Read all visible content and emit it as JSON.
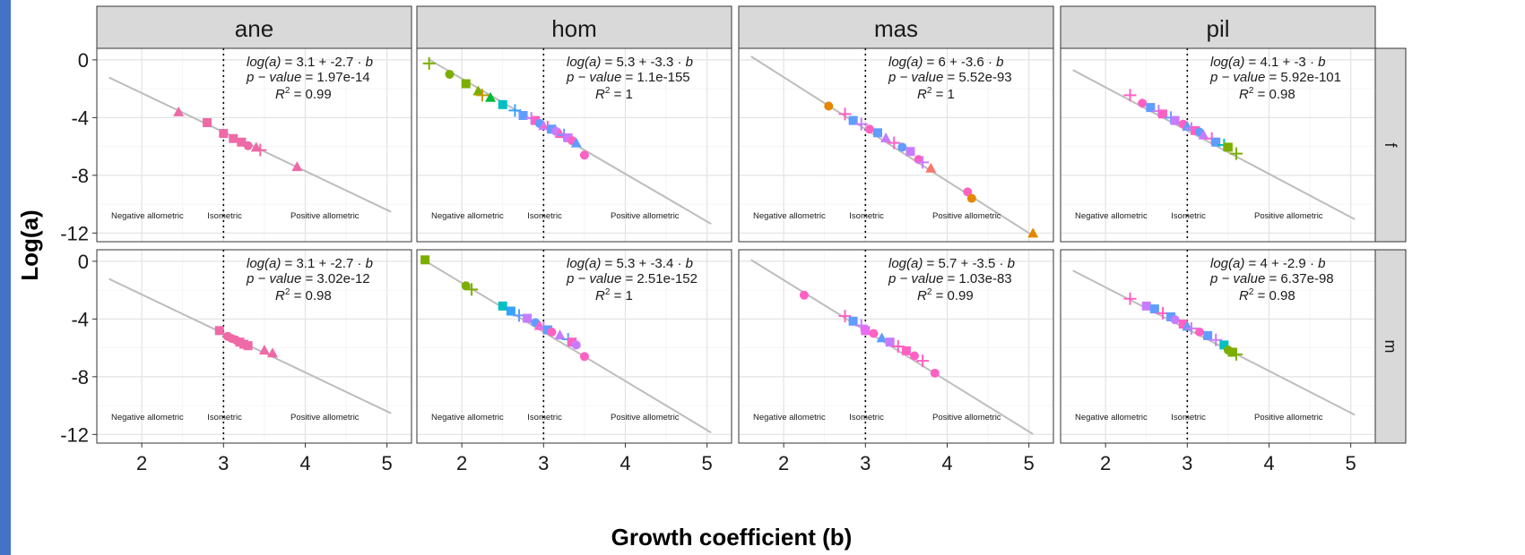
{
  "chart_data": {
    "type": "scatter",
    "xlabel": "Growth coefficient (b)",
    "ylabel": "Log(a)",
    "xlim": [
      1.45,
      5.3
    ],
    "ylim": [
      -12.6,
      0.8
    ],
    "xticks": [
      2,
      3,
      4,
      5
    ],
    "yticks": [
      0,
      -4,
      -8,
      -12
    ],
    "ytick_labels": [
      "0",
      "-4",
      "-8",
      "-12"
    ],
    "isometric_b": 3,
    "zone_labels": {
      "negative": "Negative allometric",
      "iso": "Isometric",
      "positive": "Positive allometric"
    },
    "grid": true,
    "facet_columns": [
      "ane",
      "hom",
      "mas",
      "pil"
    ],
    "facet_rows": [
      "f",
      "m"
    ],
    "panels": [
      {
        "column": "ane",
        "row": "f",
        "intercept": 3.1,
        "slope": -2.7,
        "eq_a": "3.1",
        "eq_b": "-2.7",
        "p_value": "1.97e-14",
        "r2": "0.99",
        "points": [
          [
            2.45,
            -3.6,
            "#ee6aa6",
            "tri"
          ],
          [
            2.8,
            -4.35,
            "#ee6aa6",
            "sq"
          ],
          [
            3.0,
            -5.1,
            "#ee6aa6",
            "sq"
          ],
          [
            3.12,
            -5.45,
            "#ee6aa6",
            "sq"
          ],
          [
            3.22,
            -5.7,
            "#ee6aa6",
            "sq"
          ],
          [
            3.3,
            -5.95,
            "#ee6aa6",
            "circ"
          ],
          [
            3.4,
            -6.05,
            "#ee6aa6",
            "tri"
          ],
          [
            3.45,
            -6.25,
            "#ee6aa6",
            "plus"
          ],
          [
            3.9,
            -7.4,
            "#ee6aa6",
            "tri"
          ]
        ]
      },
      {
        "column": "hom",
        "row": "f",
        "intercept": 5.3,
        "slope": -3.3,
        "eq_a": "5.3",
        "eq_b": "-3.3",
        "p_value": "1.1e-155",
        "r2": "1",
        "points": [
          [
            1.6,
            -0.25,
            "#7cae00",
            "plus"
          ],
          [
            1.85,
            -1.0,
            "#7cae00",
            "circ"
          ],
          [
            2.05,
            -1.65,
            "#7cae00",
            "sq"
          ],
          [
            2.2,
            -2.15,
            "#7cae00",
            "tri"
          ],
          [
            2.25,
            -2.45,
            "#c49a00",
            "plus"
          ],
          [
            2.35,
            -2.6,
            "#00ba38",
            "tri"
          ],
          [
            2.5,
            -3.1,
            "#00bfc4",
            "sq"
          ],
          [
            2.65,
            -3.5,
            "#35a2ff",
            "plus"
          ],
          [
            2.75,
            -3.85,
            "#619cff",
            "sq"
          ],
          [
            2.85,
            -4.05,
            "#c77cff",
            "plus"
          ],
          [
            2.9,
            -4.2,
            "#ff61c3",
            "sq"
          ],
          [
            2.95,
            -4.4,
            "#619cff",
            "circ"
          ],
          [
            3.0,
            -4.55,
            "#c77cff",
            "tri"
          ],
          [
            3.05,
            -4.65,
            "#ff61c3",
            "plus"
          ],
          [
            3.1,
            -4.8,
            "#619cff",
            "sq"
          ],
          [
            3.15,
            -4.95,
            "#c77cff",
            "circ"
          ],
          [
            3.2,
            -5.1,
            "#ff61c3",
            "tri"
          ],
          [
            3.25,
            -5.2,
            "#619cff",
            "plus"
          ],
          [
            3.3,
            -5.4,
            "#c77cff",
            "sq"
          ],
          [
            3.35,
            -5.6,
            "#ff61c3",
            "circ"
          ],
          [
            3.4,
            -5.75,
            "#619cff",
            "tri"
          ],
          [
            3.5,
            -6.6,
            "#ff61c3",
            "circ"
          ]
        ]
      },
      {
        "column": "mas",
        "row": "f",
        "intercept": 6,
        "slope": -3.6,
        "eq_a": "6",
        "eq_b": "-3.6",
        "p_value": "5.52e-93",
        "r2": "1",
        "points": [
          [
            2.55,
            -3.2,
            "#e58700",
            "circ"
          ],
          [
            2.75,
            -3.75,
            "#ff61c3",
            "plus"
          ],
          [
            2.85,
            -4.2,
            "#619cff",
            "sq"
          ],
          [
            2.95,
            -4.45,
            "#c77cff",
            "plus"
          ],
          [
            3.05,
            -4.8,
            "#ff61c3",
            "circ"
          ],
          [
            3.15,
            -5.05,
            "#619cff",
            "sq"
          ],
          [
            3.25,
            -5.4,
            "#c77cff",
            "tri"
          ],
          [
            3.35,
            -5.75,
            "#ff61c3",
            "plus"
          ],
          [
            3.45,
            -6.05,
            "#619cff",
            "circ"
          ],
          [
            3.55,
            -6.35,
            "#c77cff",
            "sq"
          ],
          [
            3.65,
            -6.9,
            "#ff61c3",
            "circ"
          ],
          [
            3.7,
            -7.1,
            "#c77cff",
            "plus"
          ],
          [
            3.8,
            -7.5,
            "#f8766d",
            "tri"
          ],
          [
            4.25,
            -9.15,
            "#ff61c3",
            "circ"
          ],
          [
            4.3,
            -9.6,
            "#e58700",
            "circ"
          ],
          [
            5.05,
            -12.0,
            "#e58700",
            "tri"
          ]
        ]
      },
      {
        "column": "pil",
        "row": "f",
        "intercept": 4.1,
        "slope": -3,
        "eq_a": "4.1",
        "eq_b": "-3",
        "p_value": "5.92e-101",
        "r2": "0.98",
        "points": [
          [
            2.3,
            -2.45,
            "#ff61c3",
            "plus"
          ],
          [
            2.45,
            -3.0,
            "#ff61c3",
            "circ"
          ],
          [
            2.55,
            -3.3,
            "#619cff",
            "sq"
          ],
          [
            2.65,
            -3.55,
            "#c77cff",
            "plus"
          ],
          [
            2.7,
            -3.75,
            "#ff61c3",
            "sq"
          ],
          [
            2.8,
            -4.0,
            "#619cff",
            "plus"
          ],
          [
            2.85,
            -4.2,
            "#c77cff",
            "sq"
          ],
          [
            2.95,
            -4.45,
            "#ff61c3",
            "circ"
          ],
          [
            3.0,
            -4.6,
            "#619cff",
            "tri"
          ],
          [
            3.05,
            -4.75,
            "#c77cff",
            "plus"
          ],
          [
            3.1,
            -4.9,
            "#ff61c3",
            "sq"
          ],
          [
            3.15,
            -5.0,
            "#619cff",
            "circ"
          ],
          [
            3.2,
            -5.2,
            "#c77cff",
            "tri"
          ],
          [
            3.3,
            -5.45,
            "#ff61c3",
            "plus"
          ],
          [
            3.35,
            -5.7,
            "#619cff",
            "sq"
          ],
          [
            3.45,
            -5.9,
            "#00bfc4",
            "plus"
          ],
          [
            3.5,
            -6.05,
            "#7cae00",
            "sq"
          ],
          [
            3.6,
            -6.5,
            "#7cae00",
            "plus"
          ]
        ]
      },
      {
        "column": "ane",
        "row": "m",
        "intercept": 3.1,
        "slope": -2.7,
        "eq_a": "3.1",
        "eq_b": "-2.7",
        "p_value": "3.02e-12",
        "r2": "0.98",
        "points": [
          [
            2.95,
            -4.8,
            "#ee6aa6",
            "sq"
          ],
          [
            3.05,
            -5.2,
            "#ee6aa6",
            "circ"
          ],
          [
            3.1,
            -5.35,
            "#ee6aa6",
            "circ"
          ],
          [
            3.15,
            -5.45,
            "#ee6aa6",
            "circ"
          ],
          [
            3.2,
            -5.6,
            "#ee6aa6",
            "sq"
          ],
          [
            3.25,
            -5.75,
            "#ee6aa6",
            "sq"
          ],
          [
            3.3,
            -5.85,
            "#ee6aa6",
            "sq"
          ],
          [
            3.5,
            -6.15,
            "#ee6aa6",
            "tri"
          ],
          [
            3.6,
            -6.35,
            "#ee6aa6",
            "tri"
          ]
        ]
      },
      {
        "column": "hom",
        "row": "m",
        "intercept": 5.3,
        "slope": -3.4,
        "eq_a": "5.3",
        "eq_b": "-3.4",
        "p_value": "2.51e-152",
        "r2": "1",
        "points": [
          [
            1.55,
            0.1,
            "#7cae00",
            "sq"
          ],
          [
            2.05,
            -1.7,
            "#7cae00",
            "circ"
          ],
          [
            2.12,
            -1.95,
            "#7cae00",
            "plus"
          ],
          [
            2.5,
            -3.1,
            "#00bfc4",
            "sq"
          ],
          [
            2.6,
            -3.45,
            "#35a2ff",
            "sq"
          ],
          [
            2.7,
            -3.75,
            "#619cff",
            "plus"
          ],
          [
            2.8,
            -3.95,
            "#c77cff",
            "sq"
          ],
          [
            2.9,
            -4.25,
            "#619cff",
            "circ"
          ],
          [
            2.95,
            -4.45,
            "#ff61c3",
            "tri"
          ],
          [
            3.0,
            -4.6,
            "#c77cff",
            "plus"
          ],
          [
            3.05,
            -4.75,
            "#619cff",
            "sq"
          ],
          [
            3.1,
            -4.9,
            "#ff61c3",
            "circ"
          ],
          [
            3.2,
            -5.1,
            "#c77cff",
            "tri"
          ],
          [
            3.3,
            -5.4,
            "#619cff",
            "plus"
          ],
          [
            3.35,
            -5.6,
            "#ff61c3",
            "sq"
          ],
          [
            3.4,
            -5.8,
            "#c77cff",
            "circ"
          ],
          [
            3.5,
            -6.6,
            "#ff61c3",
            "circ"
          ]
        ]
      },
      {
        "column": "mas",
        "row": "m",
        "intercept": 5.7,
        "slope": -3.5,
        "eq_a": "5.7",
        "eq_b": "-3.5",
        "p_value": "1.03e-83",
        "r2": "0.99",
        "points": [
          [
            2.25,
            -2.35,
            "#ff61c3",
            "circ"
          ],
          [
            2.75,
            -3.8,
            "#ff61c3",
            "plus"
          ],
          [
            2.85,
            -4.15,
            "#619cff",
            "sq"
          ],
          [
            2.95,
            -4.45,
            "#c77cff",
            "plus"
          ],
          [
            3.0,
            -4.8,
            "#e76bf3",
            "sq"
          ],
          [
            3.1,
            -5.0,
            "#ff61c3",
            "circ"
          ],
          [
            3.2,
            -5.3,
            "#619cff",
            "tri"
          ],
          [
            3.3,
            -5.6,
            "#c77cff",
            "sq"
          ],
          [
            3.4,
            -5.9,
            "#ff61c3",
            "plus"
          ],
          [
            3.5,
            -6.2,
            "#ff61c3",
            "sq"
          ],
          [
            3.6,
            -6.55,
            "#ff61c3",
            "circ"
          ],
          [
            3.7,
            -6.9,
            "#ff61c3",
            "plus"
          ],
          [
            3.85,
            -7.75,
            "#ff61c3",
            "circ"
          ]
        ]
      },
      {
        "column": "pil",
        "row": "m",
        "intercept": 4,
        "slope": -2.9,
        "eq_a": "4",
        "eq_b": "-2.9",
        "p_value": "6.37e-98",
        "r2": "0.98",
        "points": [
          [
            2.3,
            -2.6,
            "#ff61c3",
            "plus"
          ],
          [
            2.5,
            -3.1,
            "#c77cff",
            "sq"
          ],
          [
            2.6,
            -3.3,
            "#619cff",
            "sq"
          ],
          [
            2.7,
            -3.6,
            "#ff61c3",
            "plus"
          ],
          [
            2.8,
            -3.85,
            "#619cff",
            "sq"
          ],
          [
            2.85,
            -4.05,
            "#c77cff",
            "circ"
          ],
          [
            2.95,
            -4.35,
            "#ff61c3",
            "sq"
          ],
          [
            3.0,
            -4.5,
            "#619cff",
            "tri"
          ],
          [
            3.05,
            -4.65,
            "#c77cff",
            "plus"
          ],
          [
            3.15,
            -4.9,
            "#ff61c3",
            "circ"
          ],
          [
            3.25,
            -5.15,
            "#619cff",
            "sq"
          ],
          [
            3.35,
            -5.45,
            "#c77cff",
            "plus"
          ],
          [
            3.45,
            -5.8,
            "#00bfc4",
            "sq"
          ],
          [
            3.5,
            -6.15,
            "#7cae00",
            "circ"
          ],
          [
            3.55,
            -6.3,
            "#7cae00",
            "sq"
          ],
          [
            3.6,
            -6.45,
            "#7cae00",
            "plus"
          ]
        ]
      }
    ]
  }
}
